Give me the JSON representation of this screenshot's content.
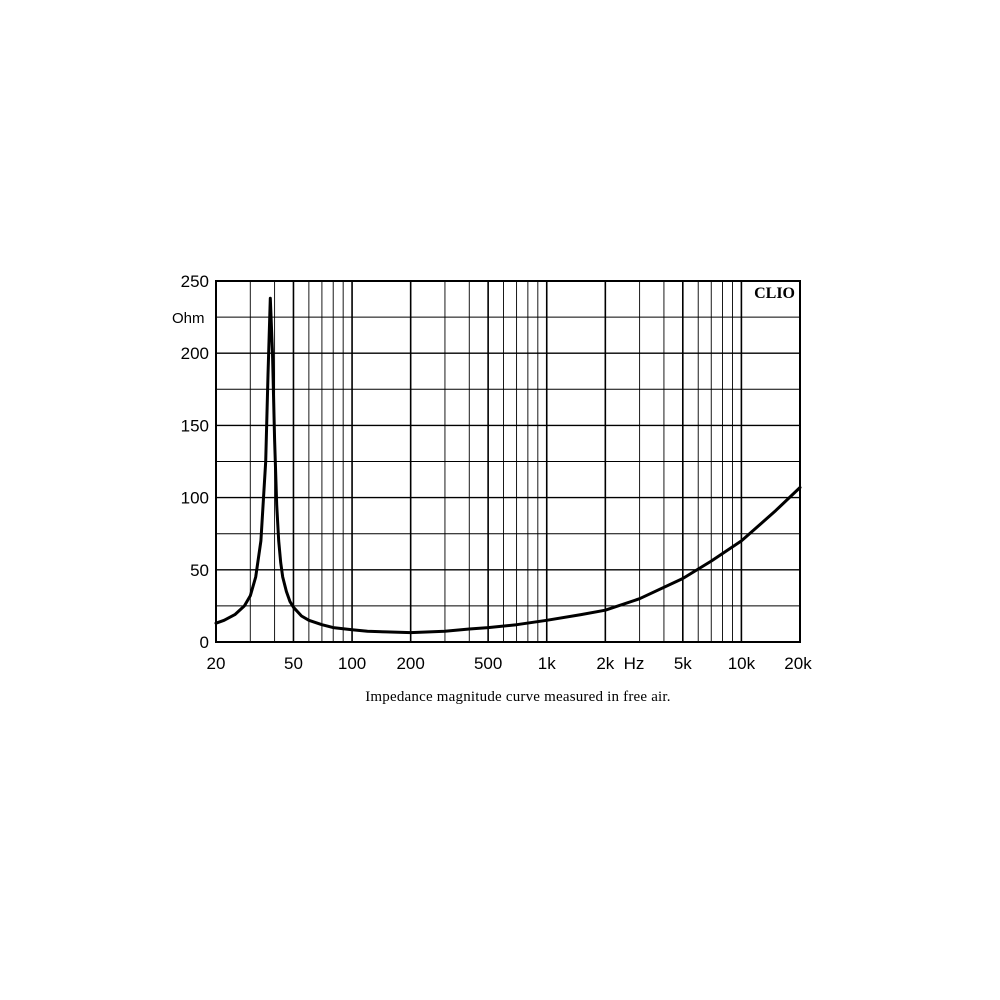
{
  "chart_data": {
    "type": "line",
    "title": "",
    "caption": "Impedance magnitude curve measured in free air.",
    "brand": "CLIO",
    "xlabel": "Hz",
    "ylabel": "Ohm",
    "x_scale": "log",
    "xlim": [
      20,
      20000
    ],
    "ylim": [
      0,
      250
    ],
    "grid": true,
    "x_ticks": [
      {
        "value": 20,
        "label": "20"
      },
      {
        "value": 50,
        "label": "50"
      },
      {
        "value": 100,
        "label": "100"
      },
      {
        "value": 200,
        "label": "200"
      },
      {
        "value": 500,
        "label": "500"
      },
      {
        "value": 1000,
        "label": "1k"
      },
      {
        "value": 2000,
        "label": "2k"
      },
      {
        "value": 5000,
        "label": "5k"
      },
      {
        "value": 10000,
        "label": "10k"
      },
      {
        "value": 20000,
        "label": "20k"
      }
    ],
    "y_ticks": [
      {
        "value": 0,
        "label": "0"
      },
      {
        "value": 50,
        "label": "50"
      },
      {
        "value": 100,
        "label": "100"
      },
      {
        "value": 150,
        "label": "150"
      },
      {
        "value": 200,
        "label": "200"
      },
      {
        "value": 250,
        "label": "250"
      }
    ],
    "series": [
      {
        "name": "",
        "x": [
          20,
          22,
          25,
          28,
          30,
          32,
          34,
          36,
          37,
          38,
          39,
          40,
          41,
          42,
          43,
          44,
          46,
          48,
          50,
          55,
          60,
          70,
          80,
          100,
          120,
          150,
          200,
          250,
          300,
          400,
          500,
          700,
          1000,
          1500,
          2000,
          3000,
          5000,
          7000,
          10000,
          15000,
          20000
        ],
        "y": [
          13,
          15,
          19,
          25,
          32,
          45,
          70,
          125,
          185,
          238,
          200,
          140,
          95,
          70,
          55,
          45,
          35,
          28,
          24,
          18,
          15,
          12,
          10,
          8.5,
          7.5,
          7,
          6.5,
          7,
          7.5,
          9,
          10,
          12,
          15,
          19,
          22,
          30,
          44,
          56,
          70,
          91,
          107
        ]
      }
    ]
  }
}
